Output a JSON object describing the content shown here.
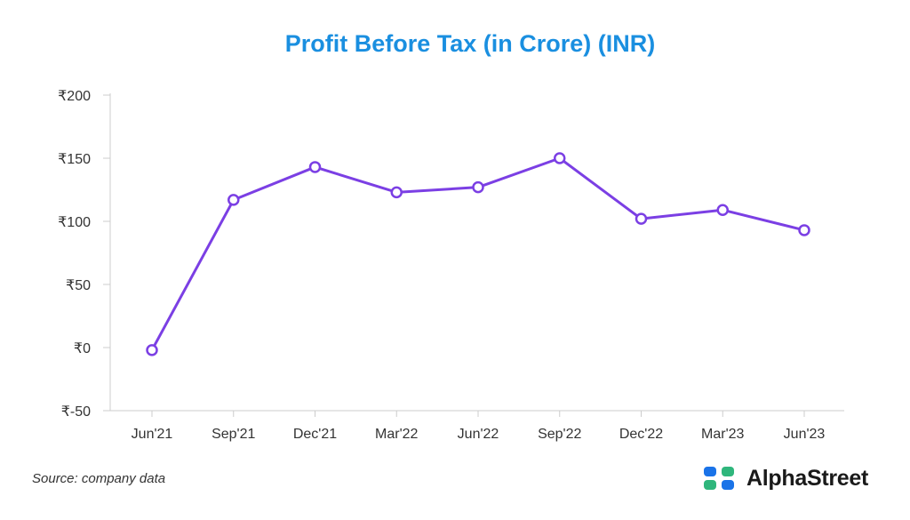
{
  "chart_data": {
    "type": "line",
    "title": "Profit Before Tax (in Crore) (INR)",
    "xlabel": "",
    "ylabel": "",
    "categories": [
      "Jun'21",
      "Sep'21",
      "Dec'21",
      "Mar'22",
      "Jun'22",
      "Sep'22",
      "Dec'22",
      "Mar'23",
      "Jun'23"
    ],
    "series": [
      {
        "values": [
          -2,
          117,
          143,
          123,
          127,
          150,
          102,
          109,
          93
        ]
      }
    ],
    "ylim": [
      -50,
      200
    ],
    "yticks": [
      -50,
      0,
      50,
      100,
      150,
      200
    ],
    "ytick_labels": [
      "₹-50",
      "₹0",
      "₹50",
      "₹100",
      "₹150",
      "₹200"
    ],
    "grid": false,
    "line_color": "#7b3fe4",
    "marker": "hollow-circle"
  },
  "footer": {
    "source": "Source: company data",
    "brand": "AlphaStreet",
    "brand_icon": "alphastreet-logo-icon"
  },
  "colors": {
    "title": "#1a8fe0",
    "line": "#7b3fe4",
    "logo_blue": "#1a73e8",
    "logo_green": "#2fb67c"
  }
}
